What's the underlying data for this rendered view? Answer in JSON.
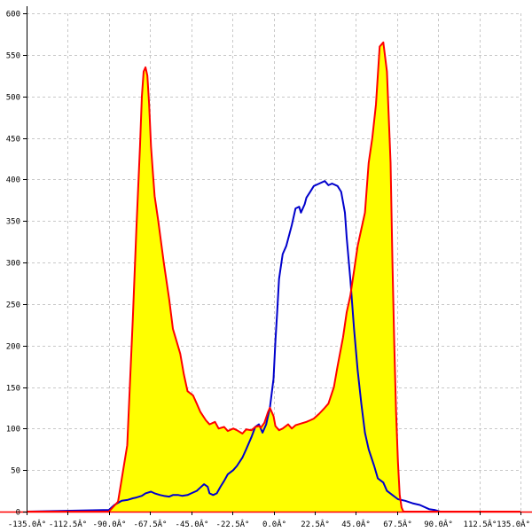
{
  "chart_data": {
    "type": "area",
    "title": "",
    "xlabel": "",
    "ylabel": "",
    "xlim": [
      -135,
      135
    ],
    "ylim": [
      0,
      600
    ],
    "grid": true,
    "legend": "none",
    "x_ticks": [
      {
        "value": -135,
        "label": "-135.0Â°"
      },
      {
        "value": -112.5,
        "label": "-112.5Â°"
      },
      {
        "value": -90,
        "label": "-90.0Â°"
      },
      {
        "value": -67.5,
        "label": "-67.5Â°"
      },
      {
        "value": -45,
        "label": "-45.0Â°"
      },
      {
        "value": -22.5,
        "label": "-22.5Â°"
      },
      {
        "value": 0,
        "label": "0.0Â°"
      },
      {
        "value": 22.5,
        "label": "22.5Â°"
      },
      {
        "value": 45,
        "label": "45.0Â°"
      },
      {
        "value": 67.5,
        "label": "67.5Â°"
      },
      {
        "value": 90,
        "label": "90.0Â°"
      },
      {
        "value": 112.5,
        "label": "112.5Â°"
      },
      {
        "value": 135,
        "label": "135.0Â°"
      }
    ],
    "y_ticks": [
      {
        "value": 0,
        "label": "0"
      },
      {
        "value": 50,
        "label": "50"
      },
      {
        "value": 100,
        "label": "100"
      },
      {
        "value": 150,
        "label": "150"
      },
      {
        "value": 200,
        "label": "200"
      },
      {
        "value": 250,
        "label": "250"
      },
      {
        "value": 300,
        "label": "300"
      },
      {
        "value": 350,
        "label": "350"
      },
      {
        "value": 400,
        "label": "400"
      },
      {
        "value": 450,
        "label": "450"
      },
      {
        "value": 500,
        "label": "500"
      },
      {
        "value": 550,
        "label": "550"
      },
      {
        "value": 600,
        "label": "600"
      }
    ],
    "series": [
      {
        "color": "#ff0000",
        "fill": "#ffff00",
        "x": [
          -135,
          -90,
          -85,
          -80,
          -77,
          -75,
          -73,
          -72,
          -71,
          -70,
          -69,
          -68,
          -67,
          -66,
          -65,
          -63,
          -60,
          -57,
          -55,
          -53,
          -51,
          -49,
          -47,
          -44,
          -42,
          -40,
          -37,
          -35,
          -32,
          -30,
          -27,
          -25,
          -22,
          -20,
          -17,
          -15,
          -12,
          -10,
          -8,
          -7,
          -5,
          -3,
          -2,
          0,
          1,
          3,
          5,
          8,
          10,
          12,
          15,
          18,
          20,
          22,
          25,
          28,
          30,
          33,
          35,
          38,
          40,
          42,
          44,
          46,
          48,
          50,
          52,
          54,
          56,
          58,
          60,
          62,
          64,
          65,
          66,
          67,
          68,
          69,
          70,
          71,
          72,
          73,
          75,
          77,
          79,
          81,
          83,
          85,
          88,
          91,
          135
        ],
        "values": [
          0,
          0,
          12,
          80,
          230,
          340,
          440,
          500,
          530,
          535,
          525,
          490,
          440,
          410,
          380,
          350,
          300,
          255,
          220,
          205,
          190,
          165,
          145,
          140,
          130,
          120,
          110,
          105,
          108,
          100,
          102,
          97,
          100,
          98,
          94,
          99,
          98,
          102,
          103,
          101,
          107,
          120,
          125,
          115,
          103,
          98,
          100,
          105,
          100,
          104,
          106,
          108,
          110,
          112,
          118,
          125,
          130,
          150,
          175,
          210,
          240,
          260,
          290,
          320,
          340,
          360,
          420,
          450,
          490,
          560,
          565,
          530,
          420,
          300,
          200,
          120,
          60,
          20,
          5,
          0,
          0,
          0,
          0,
          0,
          0,
          0,
          0,
          0,
          0,
          0,
          0
        ]
      },
      {
        "color": "#0000cc",
        "x": [
          -135,
          -90,
          -87,
          -83,
          -80,
          -77,
          -75,
          -72,
          -70,
          -67,
          -65,
          -62,
          -60,
          -57,
          -55,
          -52,
          -50,
          -47,
          -45,
          -42,
          -40,
          -38,
          -36,
          -35,
          -33,
          -31,
          -29,
          -27,
          -25,
          -22,
          -20,
          -17,
          -15,
          -12,
          -10,
          -8,
          -6,
          -4,
          -2,
          0,
          1,
          2,
          3,
          5,
          7,
          10,
          12,
          14,
          15,
          17,
          18,
          20,
          22,
          25,
          28,
          30,
          32,
          35,
          37,
          39,
          40,
          42,
          44,
          46,
          48,
          50,
          52,
          55,
          57,
          60,
          62,
          65,
          68,
          72,
          76,
          80,
          85,
          88,
          91,
          135
        ],
        "values": [
          0,
          2,
          8,
          13,
          14,
          16,
          17,
          19,
          22,
          24,
          22,
          20,
          19,
          18,
          20,
          20,
          19,
          20,
          22,
          25,
          29,
          33,
          30,
          22,
          20,
          22,
          30,
          37,
          45,
          50,
          55,
          65,
          75,
          90,
          102,
          105,
          95,
          105,
          125,
          160,
          205,
          240,
          280,
          310,
          320,
          345,
          365,
          367,
          360,
          370,
          378,
          385,
          392,
          395,
          398,
          393,
          395,
          392,
          385,
          360,
          330,
          280,
          220,
          170,
          130,
          95,
          75,
          55,
          40,
          35,
          25,
          20,
          15,
          13,
          10,
          8,
          3,
          2,
          0,
          0
        ]
      }
    ]
  }
}
